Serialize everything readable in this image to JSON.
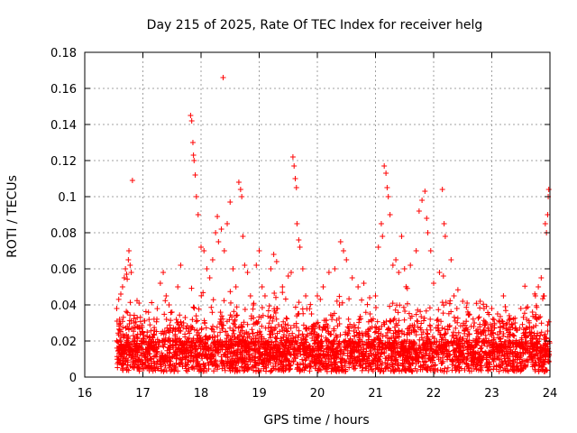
{
  "chart_data": {
    "type": "scatter",
    "title": "Day 215 of 2025, Rate Of TEC Index for receiver helg",
    "xlabel": "GPS time / hours",
    "ylabel": "ROTI / TECUs",
    "xlim": [
      16,
      24
    ],
    "ylim": [
      0,
      0.18
    ],
    "xticks": [
      16,
      17,
      18,
      19,
      20,
      21,
      22,
      23,
      24
    ],
    "xtick_labels": [
      "16",
      "17",
      "18",
      "19",
      "20",
      "21",
      "22",
      "23",
      "24"
    ],
    "yticks": [
      0,
      0.02,
      0.04,
      0.06,
      0.08,
      0.1,
      0.12,
      0.14,
      0.16,
      0.18
    ],
    "ytick_labels": [
      "0",
      "0.02",
      "0.04",
      "0.06",
      "0.08",
      "0.1",
      "0.12",
      "0.14",
      "0.16",
      "0.18"
    ],
    "grid": true,
    "marker": "plus",
    "color": "#ff0000",
    "series": [
      {
        "name": "ROTI",
        "points": [
          [
            16.55,
            0.038
          ],
          [
            16.6,
            0.032
          ],
          [
            16.62,
            0.046
          ],
          [
            16.65,
            0.05
          ],
          [
            16.68,
            0.055
          ],
          [
            16.7,
            0.06
          ],
          [
            16.72,
            0.057
          ],
          [
            16.75,
            0.065
          ],
          [
            16.76,
            0.07
          ],
          [
            16.78,
            0.062
          ],
          [
            16.8,
            0.058
          ],
          [
            16.82,
            0.109
          ],
          [
            16.85,
            0.03
          ],
          [
            16.9,
            0.028
          ],
          [
            17.0,
            0.02
          ],
          [
            17.2,
            0.026
          ],
          [
            17.3,
            0.052
          ],
          [
            17.35,
            0.058
          ],
          [
            17.4,
            0.045
          ],
          [
            17.45,
            0.04
          ],
          [
            17.5,
            0.036
          ],
          [
            17.6,
            0.05
          ],
          [
            17.65,
            0.062
          ],
          [
            17.7,
            0.03
          ],
          [
            17.82,
            0.145
          ],
          [
            17.84,
            0.142
          ],
          [
            17.86,
            0.13
          ],
          [
            17.87,
            0.123
          ],
          [
            17.88,
            0.12
          ],
          [
            17.9,
            0.112
          ],
          [
            17.92,
            0.1
          ],
          [
            17.95,
            0.09
          ],
          [
            18.0,
            0.072
          ],
          [
            18.05,
            0.07
          ],
          [
            18.1,
            0.06
          ],
          [
            18.15,
            0.055
          ],
          [
            18.2,
            0.065
          ],
          [
            18.25,
            0.08
          ],
          [
            18.28,
            0.089
          ],
          [
            18.3,
            0.075
          ],
          [
            18.35,
            0.082
          ],
          [
            18.38,
            0.166
          ],
          [
            18.4,
            0.07
          ],
          [
            18.45,
            0.085
          ],
          [
            18.5,
            0.097
          ],
          [
            18.55,
            0.06
          ],
          [
            18.6,
            0.05
          ],
          [
            18.65,
            0.108
          ],
          [
            18.68,
            0.104
          ],
          [
            18.7,
            0.1
          ],
          [
            18.72,
            0.078
          ],
          [
            18.75,
            0.062
          ],
          [
            18.8,
            0.058
          ],
          [
            18.85,
            0.045
          ],
          [
            18.9,
            0.04
          ],
          [
            18.95,
            0.062
          ],
          [
            19.0,
            0.07
          ],
          [
            19.05,
            0.05
          ],
          [
            19.1,
            0.045
          ],
          [
            19.2,
            0.06
          ],
          [
            19.25,
            0.068
          ],
          [
            19.3,
            0.064
          ],
          [
            19.4,
            0.05
          ],
          [
            19.5,
            0.056
          ],
          [
            19.55,
            0.058
          ],
          [
            19.58,
            0.122
          ],
          [
            19.6,
            0.117
          ],
          [
            19.62,
            0.11
          ],
          [
            19.64,
            0.105
          ],
          [
            19.65,
            0.085
          ],
          [
            19.68,
            0.076
          ],
          [
            19.7,
            0.072
          ],
          [
            19.75,
            0.06
          ],
          [
            19.8,
            0.045
          ],
          [
            19.9,
            0.035
          ],
          [
            20.0,
            0.045
          ],
          [
            20.1,
            0.05
          ],
          [
            20.2,
            0.058
          ],
          [
            20.3,
            0.06
          ],
          [
            20.4,
            0.075
          ],
          [
            20.45,
            0.07
          ],
          [
            20.5,
            0.065
          ],
          [
            20.6,
            0.055
          ],
          [
            20.7,
            0.05
          ],
          [
            20.8,
            0.052
          ],
          [
            20.9,
            0.044
          ],
          [
            21.0,
            0.045
          ],
          [
            21.05,
            0.072
          ],
          [
            21.1,
            0.085
          ],
          [
            21.12,
            0.078
          ],
          [
            21.15,
            0.117
          ],
          [
            21.18,
            0.113
          ],
          [
            21.2,
            0.105
          ],
          [
            21.22,
            0.1
          ],
          [
            21.25,
            0.09
          ],
          [
            21.3,
            0.062
          ],
          [
            21.35,
            0.065
          ],
          [
            21.4,
            0.058
          ],
          [
            21.45,
            0.078
          ],
          [
            21.5,
            0.06
          ],
          [
            21.6,
            0.062
          ],
          [
            21.7,
            0.07
          ],
          [
            21.75,
            0.092
          ],
          [
            21.8,
            0.098
          ],
          [
            21.85,
            0.103
          ],
          [
            21.88,
            0.088
          ],
          [
            21.9,
            0.08
          ],
          [
            21.95,
            0.07
          ],
          [
            22.0,
            0.052
          ],
          [
            22.1,
            0.058
          ],
          [
            22.15,
            0.104
          ],
          [
            22.18,
            0.085
          ],
          [
            22.2,
            0.078
          ],
          [
            22.3,
            0.065
          ],
          [
            22.35,
            0.045
          ],
          [
            22.4,
            0.038
          ],
          [
            22.5,
            0.042
          ],
          [
            22.6,
            0.035
          ],
          [
            22.7,
            0.03
          ],
          [
            22.8,
            0.042
          ],
          [
            22.9,
            0.03
          ],
          [
            23.0,
            0.038
          ],
          [
            23.1,
            0.035
          ],
          [
            23.2,
            0.045
          ],
          [
            23.3,
            0.034
          ],
          [
            23.4,
            0.03
          ],
          [
            23.5,
            0.038
          ],
          [
            23.6,
            0.032
          ],
          [
            23.7,
            0.036
          ],
          [
            23.75,
            0.045
          ],
          [
            23.8,
            0.05
          ],
          [
            23.85,
            0.055
          ],
          [
            23.9,
            0.045
          ],
          [
            23.92,
            0.085
          ],
          [
            23.94,
            0.08
          ],
          [
            23.96,
            0.09
          ],
          [
            23.97,
            0.1
          ],
          [
            23.98,
            0.104
          ]
        ]
      }
    ]
  }
}
